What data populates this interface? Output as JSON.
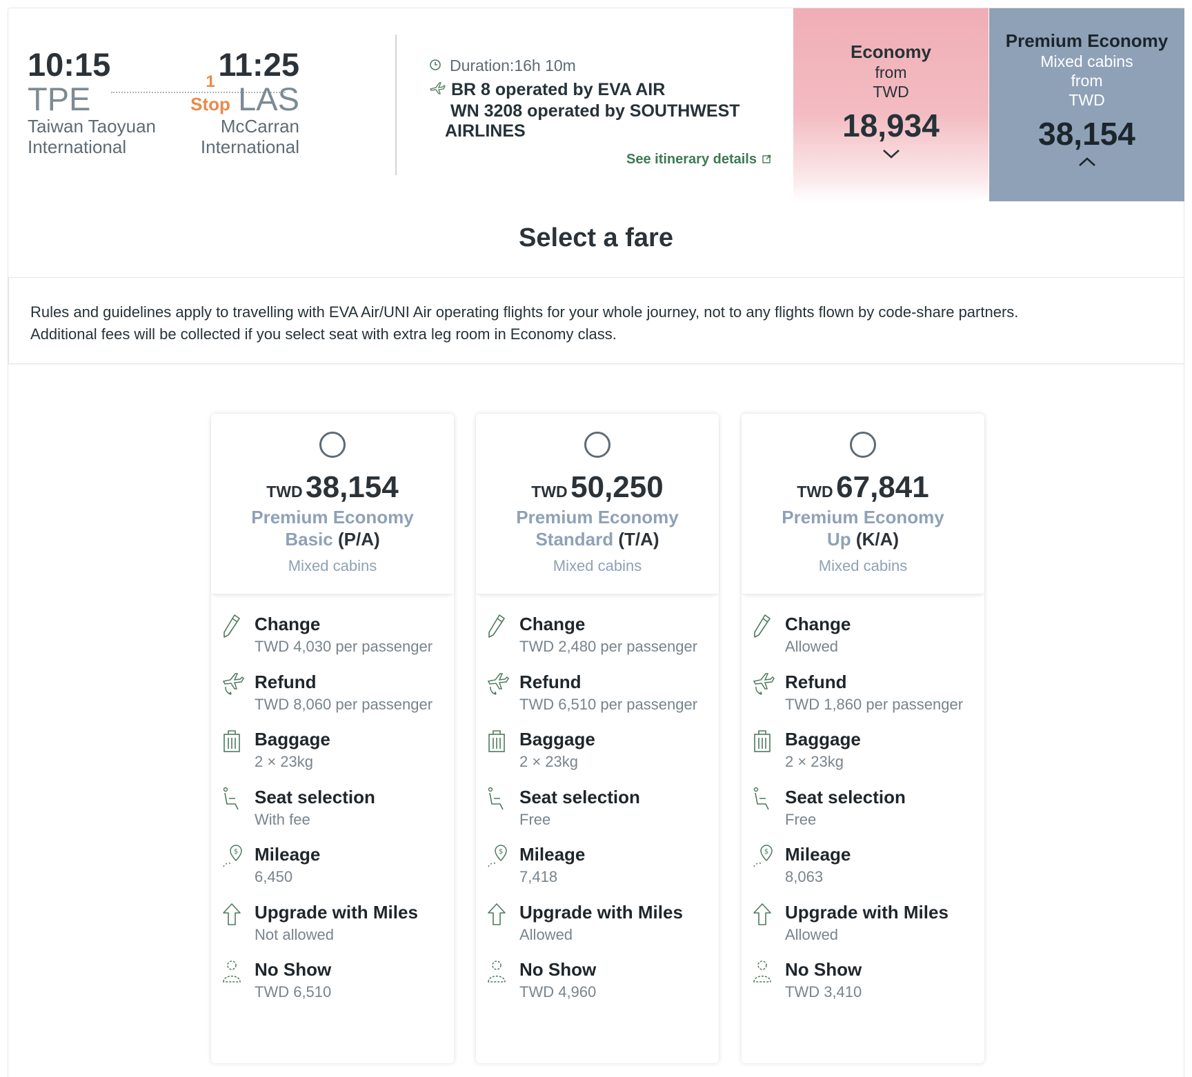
{
  "flight": {
    "departure": {
      "time": "10:15",
      "code": "TPE",
      "airport": "Taiwan Taoyuan International"
    },
    "arrival": {
      "time": "11:25",
      "code": "LAS",
      "airport": "McCarran International"
    },
    "stops": {
      "count": "1",
      "label": "Stop"
    },
    "duration": "Duration:16h 10m",
    "segments": [
      "BR 8 operated by EVA AIR",
      "WN 3208 operated by SOUTHWEST",
      "AIRLINES"
    ],
    "itinerary_link": "See itinerary details"
  },
  "cabins": {
    "economy": {
      "name": "Economy",
      "from": "from",
      "currency": "TWD",
      "price": "18,934"
    },
    "premium": {
      "name": "Premium Economy",
      "mixed": "Mixed cabins",
      "from": "from",
      "currency": "TWD",
      "price": "38,154"
    }
  },
  "select_title": "Select a fare",
  "notice": {
    "line1": "Rules and guidelines apply to travelling with EVA Air/UNI Air operating flights for your whole journey, not to any flights flown by code-share partners.",
    "line2": "Additional fees will be collected if you select seat with extra leg room in Economy class."
  },
  "fares": [
    {
      "currency": "TWD",
      "price": "38,154",
      "name_line1": "Premium Economy",
      "name_line2": "Basic",
      "booking_code": "(P/A)",
      "mixed": "Mixed cabins",
      "features": [
        {
          "title": "Change",
          "value": "TWD 4,030 per passenger"
        },
        {
          "title": "Refund",
          "value": "TWD 8,060 per passenger"
        },
        {
          "title": "Baggage",
          "value": "2 × 23kg"
        },
        {
          "title": "Seat selection",
          "value": "With fee"
        },
        {
          "title": "Mileage",
          "value": "6,450"
        },
        {
          "title": "Upgrade with Miles",
          "value": "Not allowed"
        },
        {
          "title": "No Show",
          "value": "TWD 6,510"
        }
      ]
    },
    {
      "currency": "TWD",
      "price": "50,250",
      "name_line1": "Premium Economy",
      "name_line2": "Standard",
      "booking_code": "(T/A)",
      "mixed": "Mixed cabins",
      "features": [
        {
          "title": "Change",
          "value": "TWD 2,480 per passenger"
        },
        {
          "title": "Refund",
          "value": "TWD 6,510 per passenger"
        },
        {
          "title": "Baggage",
          "value": "2 × 23kg"
        },
        {
          "title": "Seat selection",
          "value": "Free"
        },
        {
          "title": "Mileage",
          "value": "7,418"
        },
        {
          "title": "Upgrade with Miles",
          "value": "Allowed"
        },
        {
          "title": "No Show",
          "value": "TWD 4,960"
        }
      ]
    },
    {
      "currency": "TWD",
      "price": "67,841",
      "name_line1": "Premium Economy",
      "name_line2": "Up",
      "booking_code": "(K/A)",
      "mixed": "Mixed cabins",
      "features": [
        {
          "title": "Change",
          "value": "Allowed"
        },
        {
          "title": "Refund",
          "value": "TWD 1,860 per passenger"
        },
        {
          "title": "Baggage",
          "value": "2 × 23kg"
        },
        {
          "title": "Seat selection",
          "value": "Free"
        },
        {
          "title": "Mileage",
          "value": "8,063"
        },
        {
          "title": "Upgrade with Miles",
          "value": "Allowed"
        },
        {
          "title": "No Show",
          "value": "TWD 3,410"
        }
      ]
    }
  ],
  "icons": [
    "pencil-icon",
    "refund-plane-icon",
    "baggage-icon",
    "seat-icon",
    "mileage-icon",
    "upgrade-arrow-icon",
    "no-show-person-icon",
    "clock-icon",
    "plane-icon",
    "external-link-icon",
    "chevron-down-icon",
    "chevron-up-icon"
  ],
  "colors": {
    "economy_tab": "#f0aeb6",
    "premium_tab": "#8fa1b7",
    "stop_orange": "#e98a4b",
    "link_green": "#3d7a52",
    "icon_green": "#4d7a5e"
  }
}
